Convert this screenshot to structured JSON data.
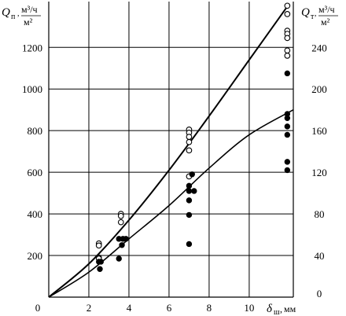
{
  "chart_data": {
    "type": "scatter",
    "y_left_label": {
      "main": "Q",
      "sub": "п",
      "unit_top": "м³/ч",
      "unit_bottom": "м²"
    },
    "y_right_label": {
      "main": "Q",
      "sub": "т",
      "unit_top": "м³/ч",
      "unit_bottom": "м²"
    },
    "x_label": {
      "main": "δ",
      "sub": "ш",
      "unit": "мм"
    },
    "x_range": [
      0,
      12.2
    ],
    "y_left_range": [
      0,
      1420
    ],
    "y_right_range": [
      0,
      284
    ],
    "x_ticks": [
      "0",
      "2",
      "4",
      "6",
      "8",
      "10"
    ],
    "x_tick_values": [
      0,
      2,
      4,
      6,
      8,
      10
    ],
    "y_left_ticks": [
      "200",
      "400",
      "600",
      "800",
      "1000",
      "1200"
    ],
    "y_left_tick_values": [
      200,
      400,
      600,
      800,
      1000,
      1200
    ],
    "y_right_ticks": [
      "0",
      "40",
      "80",
      "120",
      "160",
      "200",
      "240"
    ],
    "y_right_tick_values": [
      0,
      40,
      80,
      120,
      160,
      200,
      240
    ],
    "grid": true,
    "series": [
      {
        "marker": "open-circle",
        "axis": "left",
        "points": [
          [
            2.5,
            258
          ],
          [
            2.5,
            248
          ],
          [
            2.5,
            190
          ],
          [
            2.5,
            185
          ],
          [
            3.6,
            400
          ],
          [
            3.6,
            390
          ],
          [
            3.6,
            360
          ],
          [
            7.0,
            805
          ],
          [
            7.0,
            790
          ],
          [
            7.0,
            770
          ],
          [
            7.0,
            745
          ],
          [
            7.0,
            705
          ],
          [
            7.0,
            580
          ],
          [
            11.9,
            1400
          ],
          [
            11.9,
            1360
          ],
          [
            11.9,
            1280
          ],
          [
            11.9,
            1265
          ],
          [
            11.9,
            1245
          ],
          [
            11.9,
            1185
          ],
          [
            11.9,
            1160
          ]
        ]
      },
      {
        "marker": "filled-circle",
        "axis": "left",
        "points": [
          [
            2.5,
            170
          ],
          [
            2.6,
            170
          ],
          [
            2.55,
            135
          ],
          [
            3.5,
            280
          ],
          [
            3.7,
            280
          ],
          [
            3.85,
            280
          ],
          [
            3.65,
            250
          ],
          [
            3.5,
            185
          ],
          [
            7.0,
            535
          ],
          [
            7.0,
            510
          ],
          [
            7.25,
            510
          ],
          [
            7.15,
            590
          ],
          [
            7.0,
            465
          ],
          [
            7.0,
            395
          ],
          [
            7.0,
            255
          ],
          [
            11.9,
            1075
          ],
          [
            11.9,
            880
          ],
          [
            11.9,
            860
          ],
          [
            11.9,
            820
          ],
          [
            11.9,
            780
          ],
          [
            11.9,
            650
          ],
          [
            11.9,
            610
          ]
        ]
      }
    ],
    "curves": [
      {
        "axis": "left",
        "points": [
          [
            0,
            0
          ],
          [
            2,
            160
          ],
          [
            4,
            370
          ],
          [
            6,
            610
          ],
          [
            8,
            870
          ],
          [
            10,
            1140
          ],
          [
            12,
            1410
          ]
        ]
      },
      {
        "axis": "left",
        "points": [
          [
            0,
            0
          ],
          [
            2,
            120
          ],
          [
            4,
            280
          ],
          [
            6,
            440
          ],
          [
            8,
            620
          ],
          [
            10,
            780
          ],
          [
            12.2,
            900
          ]
        ]
      }
    ]
  }
}
